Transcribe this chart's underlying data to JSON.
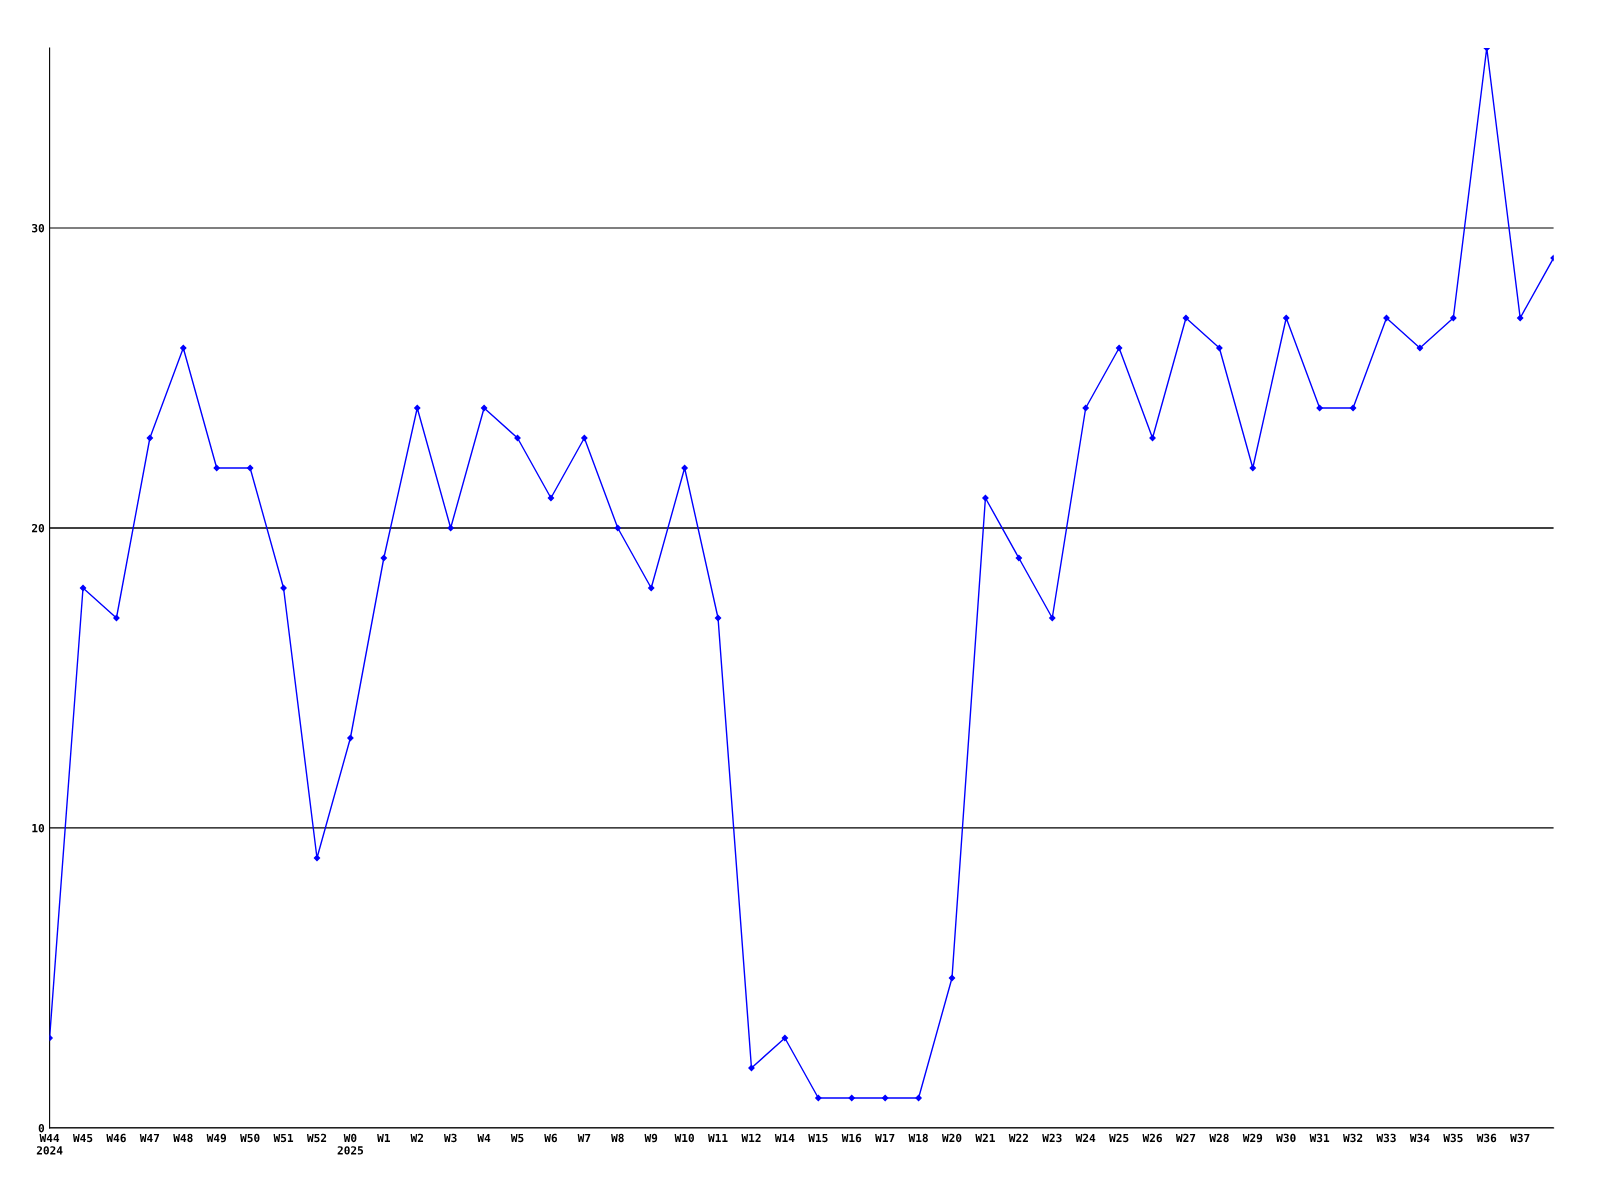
{
  "chart_data": {
    "type": "line",
    "categories": [
      "W44\n2024",
      "W45",
      "W46",
      "W47",
      "W48",
      "W49",
      "W50",
      "W51",
      "W52",
      "W0\n2025",
      "W1",
      "W2",
      "W3",
      "W4",
      "W5",
      "W6",
      "W7",
      "W8",
      "W9",
      "W10",
      "W11",
      "W12",
      "W14",
      "W15",
      "W16",
      "W17",
      "W18",
      "W20",
      "W21",
      "W22",
      "W23",
      "W24",
      "W25",
      "W26",
      "W27",
      "W28",
      "W29",
      "W30",
      "W31",
      "W32",
      "W33",
      "W34",
      "W35",
      "W36",
      "W37",
      null
    ],
    "series": [
      {
        "color": "#0000ff",
        "values": [
          3,
          18,
          17,
          23,
          26,
          22,
          22,
          18,
          9,
          13,
          19,
          24,
          20,
          24,
          23,
          21,
          23,
          20,
          18,
          22,
          17,
          2,
          3,
          1,
          1,
          1,
          1,
          5,
          21,
          19,
          17,
          24,
          26,
          23,
          27,
          26,
          22,
          27,
          24,
          24,
          27,
          26,
          27,
          36,
          27,
          29
        ]
      }
    ],
    "ylim": [
      0,
      36
    ],
    "yticks": [
      0,
      10,
      20,
      30
    ],
    "grid": "y",
    "marker": "diamond",
    "legend": false
  }
}
